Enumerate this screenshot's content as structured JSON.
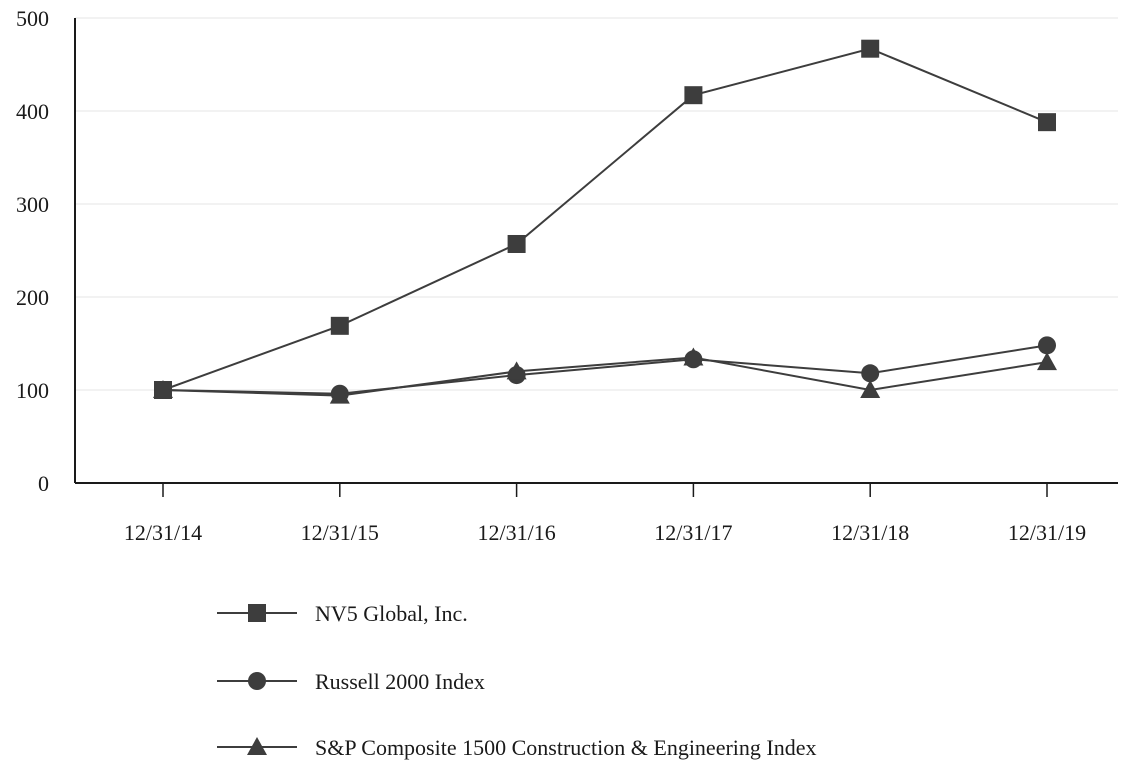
{
  "chart_data": {
    "type": "line",
    "categories": [
      "12/31/14",
      "12/31/15",
      "12/31/16",
      "12/31/17",
      "12/31/18",
      "12/31/19"
    ],
    "ylim": [
      0,
      500
    ],
    "yticks": [
      0,
      100,
      200,
      300,
      400,
      500
    ],
    "grid": true,
    "legend_position": "bottom",
    "series": [
      {
        "name": "NV5 Global, Inc.",
        "marker": "square",
        "values": [
          100,
          169,
          257,
          417,
          467,
          388
        ]
      },
      {
        "name": "Russell 2000 Index",
        "marker": "circle",
        "values": [
          100,
          96,
          116,
          133,
          118,
          148
        ]
      },
      {
        "name": "S&P Composite 1500 Construction & Engineering Index",
        "marker": "triangle",
        "values": [
          100,
          94,
          120,
          135,
          100,
          130
        ]
      }
    ],
    "colors": {
      "line": "#3d3d3d",
      "marker": "#3d3d3d",
      "axis": "#1a1a1a",
      "grid": "#e6e6e6"
    }
  }
}
